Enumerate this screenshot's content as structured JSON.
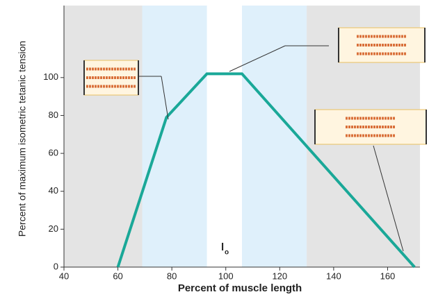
{
  "chart_data": {
    "type": "line",
    "x_label": "Percent of muscle length",
    "y_label": "Percent of maximum isometric tetanic tension",
    "annotation": {
      "text": "l",
      "subscript": "o"
    },
    "x": [
      60,
      78,
      93,
      106,
      170
    ],
    "series": [
      {
        "color": "#1aa898",
        "values": [
          0,
          79,
          102,
          102,
          0
        ]
      }
    ],
    "bands": [
      {
        "from": 40,
        "to": 69,
        "color": "#e4e4e4"
      },
      {
        "from": 69,
        "to": 93,
        "color": "#dff0fb"
      },
      {
        "from": 106,
        "to": 130,
        "color": "#dff0fb"
      },
      {
        "from": 130,
        "to": 172,
        "color": "#e4e4e4"
      }
    ],
    "xlim": [
      40,
      172
    ],
    "xticks": [
      40,
      60,
      80,
      100,
      120,
      140,
      160
    ],
    "ylim": [
      0,
      138
    ],
    "yticks": [
      0,
      20,
      40,
      60,
      80,
      100
    ]
  }
}
